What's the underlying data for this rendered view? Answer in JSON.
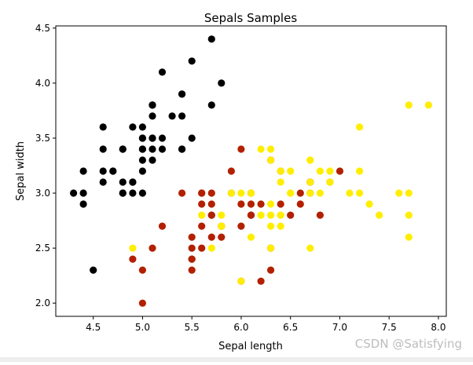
{
  "chart_data": {
    "type": "scatter",
    "title": "Sepals Samples",
    "xlabel": "Sepal length",
    "ylabel": "Sepal width",
    "xlim": [
      4.12,
      8.08
    ],
    "ylim": [
      1.88,
      4.52
    ],
    "xticks": [
      "4.5",
      "5.0",
      "5.5",
      "6.0",
      "6.5",
      "7.0",
      "7.5",
      "8.0"
    ],
    "yticks": [
      "2.0",
      "2.5",
      "3.0",
      "3.5",
      "4.0",
      "4.5"
    ],
    "grid": false,
    "series": [
      {
        "color": "#000000",
        "points": [
          [
            5.1,
            3.5
          ],
          [
            4.9,
            3.0
          ],
          [
            4.7,
            3.2
          ],
          [
            4.6,
            3.1
          ],
          [
            5.0,
            3.6
          ],
          [
            5.4,
            3.9
          ],
          [
            4.6,
            3.4
          ],
          [
            5.0,
            3.4
          ],
          [
            4.4,
            2.9
          ],
          [
            4.9,
            3.1
          ],
          [
            5.4,
            3.7
          ],
          [
            4.8,
            3.4
          ],
          [
            4.8,
            3.0
          ],
          [
            4.3,
            3.0
          ],
          [
            5.8,
            4.0
          ],
          [
            5.7,
            4.4
          ],
          [
            5.4,
            3.9
          ],
          [
            5.1,
            3.5
          ],
          [
            5.7,
            3.8
          ],
          [
            5.1,
            3.8
          ],
          [
            5.4,
            3.4
          ],
          [
            5.1,
            3.7
          ],
          [
            4.6,
            3.6
          ],
          [
            5.1,
            3.3
          ],
          [
            4.8,
            3.4
          ],
          [
            5.0,
            3.0
          ],
          [
            5.0,
            3.4
          ],
          [
            5.2,
            3.5
          ],
          [
            5.2,
            3.4
          ],
          [
            4.7,
            3.2
          ],
          [
            4.8,
            3.1
          ],
          [
            5.4,
            3.4
          ],
          [
            5.2,
            4.1
          ],
          [
            5.5,
            4.2
          ],
          [
            4.9,
            3.1
          ],
          [
            5.0,
            3.2
          ],
          [
            5.5,
            3.5
          ],
          [
            4.9,
            3.6
          ],
          [
            4.4,
            3.0
          ],
          [
            5.1,
            3.4
          ],
          [
            5.0,
            3.5
          ],
          [
            4.5,
            2.3
          ],
          [
            4.4,
            3.2
          ],
          [
            5.0,
            3.5
          ],
          [
            5.1,
            3.8
          ],
          [
            4.8,
            3.0
          ],
          [
            5.1,
            3.8
          ],
          [
            4.6,
            3.2
          ],
          [
            5.3,
            3.7
          ],
          [
            5.0,
            3.3
          ]
        ]
      },
      {
        "color": "#b22000",
        "points": [
          [
            7.0,
            3.2
          ],
          [
            6.4,
            3.2
          ],
          [
            6.9,
            3.1
          ],
          [
            5.5,
            2.3
          ],
          [
            6.5,
            2.8
          ],
          [
            5.7,
            2.8
          ],
          [
            6.3,
            3.3
          ],
          [
            4.9,
            2.4
          ],
          [
            6.6,
            2.9
          ],
          [
            5.2,
            2.7
          ],
          [
            5.0,
            2.0
          ],
          [
            5.9,
            3.0
          ],
          [
            6.0,
            2.2
          ],
          [
            6.1,
            2.9
          ],
          [
            5.6,
            2.9
          ],
          [
            6.7,
            3.1
          ],
          [
            5.6,
            3.0
          ],
          [
            5.8,
            2.7
          ],
          [
            6.2,
            2.2
          ],
          [
            5.6,
            2.5
          ],
          [
            5.9,
            3.2
          ],
          [
            6.1,
            2.8
          ],
          [
            6.3,
            2.5
          ],
          [
            6.1,
            2.8
          ],
          [
            6.4,
            2.9
          ],
          [
            6.6,
            3.0
          ],
          [
            6.8,
            2.8
          ],
          [
            6.7,
            3.0
          ],
          [
            6.0,
            2.9
          ],
          [
            5.7,
            2.6
          ],
          [
            5.5,
            2.4
          ],
          [
            5.5,
            2.4
          ],
          [
            5.8,
            2.7
          ],
          [
            6.0,
            2.7
          ],
          [
            5.4,
            3.0
          ],
          [
            6.0,
            3.4
          ],
          [
            6.7,
            3.1
          ],
          [
            6.3,
            2.3
          ],
          [
            5.6,
            3.0
          ],
          [
            5.5,
            2.5
          ],
          [
            5.5,
            2.6
          ],
          [
            6.1,
            3.0
          ],
          [
            5.8,
            2.6
          ],
          [
            5.0,
            2.3
          ],
          [
            5.6,
            2.7
          ],
          [
            5.7,
            3.0
          ],
          [
            5.7,
            2.9
          ],
          [
            6.2,
            2.9
          ],
          [
            5.1,
            2.5
          ],
          [
            5.7,
            2.8
          ]
        ]
      },
      {
        "color": "#ffee00",
        "points": [
          [
            6.3,
            3.3
          ],
          [
            5.8,
            2.7
          ],
          [
            7.1,
            3.0
          ],
          [
            6.3,
            2.9
          ],
          [
            6.5,
            3.0
          ],
          [
            7.6,
            3.0
          ],
          [
            4.9,
            2.5
          ],
          [
            7.3,
            2.9
          ],
          [
            6.7,
            2.5
          ],
          [
            7.2,
            3.6
          ],
          [
            6.5,
            3.2
          ],
          [
            6.4,
            2.7
          ],
          [
            6.8,
            3.0
          ],
          [
            5.7,
            2.5
          ],
          [
            5.8,
            2.8
          ],
          [
            6.4,
            3.2
          ],
          [
            6.5,
            3.0
          ],
          [
            7.7,
            3.8
          ],
          [
            7.7,
            2.6
          ],
          [
            6.0,
            2.2
          ],
          [
            6.9,
            3.2
          ],
          [
            5.6,
            2.8
          ],
          [
            7.7,
            2.8
          ],
          [
            6.3,
            2.7
          ],
          [
            6.7,
            3.3
          ],
          [
            7.2,
            3.2
          ],
          [
            6.2,
            2.8
          ],
          [
            6.1,
            3.0
          ],
          [
            6.4,
            2.8
          ],
          [
            7.2,
            3.0
          ],
          [
            7.4,
            2.8
          ],
          [
            7.9,
            3.8
          ],
          [
            6.4,
            2.8
          ],
          [
            6.3,
            2.8
          ],
          [
            6.1,
            2.6
          ],
          [
            7.7,
            3.0
          ],
          [
            6.3,
            3.4
          ],
          [
            6.4,
            3.1
          ],
          [
            6.0,
            3.0
          ],
          [
            6.9,
            3.1
          ],
          [
            6.7,
            3.1
          ],
          [
            6.9,
            3.1
          ],
          [
            5.8,
            2.7
          ],
          [
            6.8,
            3.2
          ],
          [
            6.7,
            3.3
          ],
          [
            6.7,
            3.0
          ],
          [
            6.3,
            2.5
          ],
          [
            6.5,
            3.0
          ],
          [
            6.2,
            3.4
          ],
          [
            5.9,
            3.0
          ]
        ]
      }
    ]
  },
  "watermark": "CSDN @Satisfying"
}
